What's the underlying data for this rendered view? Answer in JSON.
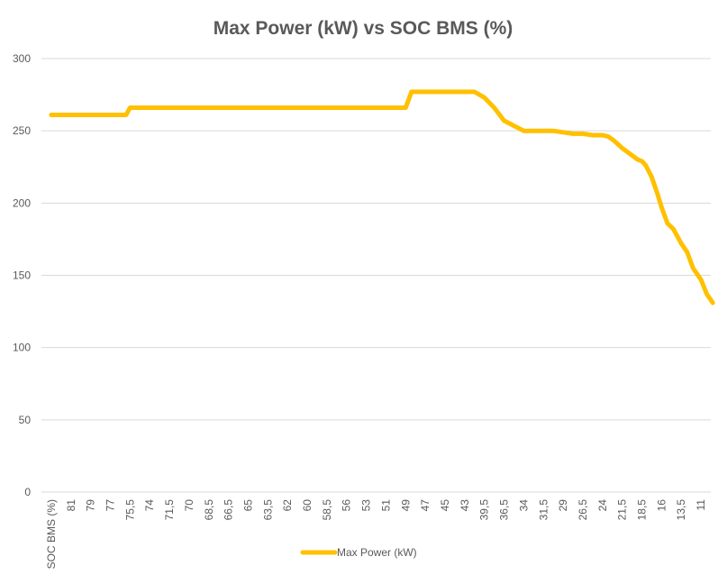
{
  "chart_data": {
    "type": "line",
    "title": "Max Power (kW) vs SOC BMS (%)",
    "xlabel": "SOC BMS (%)",
    "ylabel": "",
    "ylim": [
      0,
      300
    ],
    "yticks": [
      0,
      50,
      100,
      150,
      200,
      250,
      300
    ],
    "x_tick_labels": [
      "SOC BMS (%)",
      "81",
      "79",
      "77",
      "75,5",
      "74",
      "71,5",
      "70",
      "68,5",
      "66,5",
      "65",
      "63,5",
      "62",
      "60",
      "58,5",
      "56",
      "53",
      "51",
      "49",
      "47",
      "45",
      "43",
      "39,5",
      "36,5",
      "34",
      "31,5",
      "29",
      "26,5",
      "24",
      "21,5",
      "18,5",
      "16",
      "13,5",
      "11"
    ],
    "grid": true,
    "legend_position": "bottom",
    "line_color": "#FFC000",
    "series": [
      {
        "name": "Max Power (kW)",
        "x": [
          0,
          1,
          2,
          3,
          3.8,
          4.0,
          5,
          6,
          7,
          8,
          9,
          10,
          11,
          12,
          13,
          14,
          15,
          16,
          17,
          18,
          18.3,
          18.5,
          19,
          20,
          20.5,
          21,
          21.5,
          22,
          22.5,
          23,
          24,
          25,
          25.5,
          26,
          26.5,
          27,
          27.5,
          28,
          28.3,
          28.6,
          29,
          29.4,
          29.8,
          30,
          30.2,
          30.5,
          30.8,
          31,
          31.3,
          31.6,
          32,
          32.3,
          32.6,
          33,
          33.3,
          33.6
        ],
        "y": [
          261,
          261,
          261,
          261,
          261,
          266,
          266,
          266,
          266,
          266,
          266,
          266,
          266,
          266,
          266,
          266,
          266,
          266,
          266,
          266,
          277,
          277,
          277,
          277,
          277,
          277,
          277,
          273,
          266,
          257,
          250,
          250,
          250,
          249,
          248,
          248,
          247,
          247,
          246,
          243,
          238,
          234,
          230,
          229,
          226,
          218,
          206,
          197,
          186,
          182,
          172,
          166,
          155,
          147,
          137,
          131
        ]
      }
    ]
  }
}
